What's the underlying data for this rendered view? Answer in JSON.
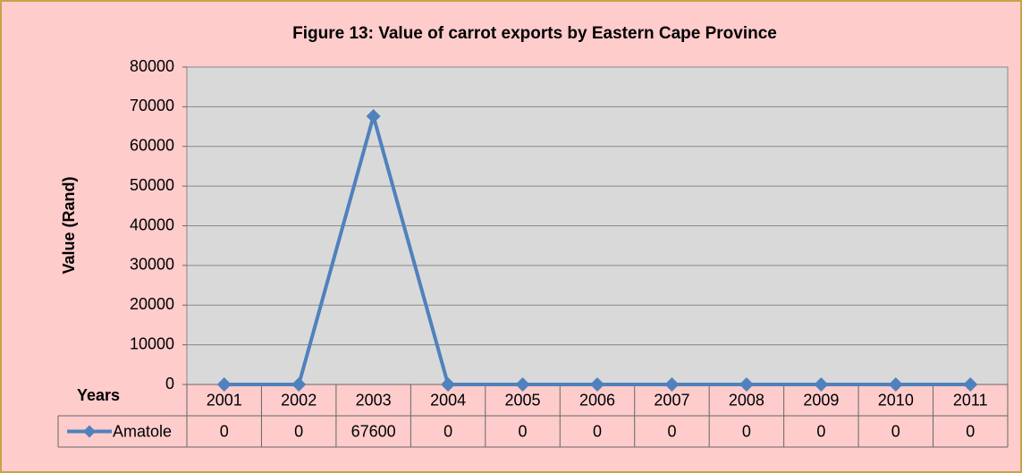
{
  "chart_data": {
    "type": "line",
    "title": "Figure 13: Value of carrot exports by Eastern Cape Province",
    "ylabel": "Value (Rand)",
    "xlabel": "Years",
    "categories": [
      "2001",
      "2002",
      "2003",
      "2004",
      "2005",
      "2006",
      "2007",
      "2008",
      "2009",
      "2010",
      "2011"
    ],
    "series": [
      {
        "name": "Amatole",
        "color": "#4f81bd",
        "values": [
          0,
          0,
          67600,
          0,
          0,
          0,
          0,
          0,
          0,
          0,
          0
        ]
      }
    ],
    "ylim": [
      0,
      80000
    ],
    "yticks": [
      0,
      10000,
      20000,
      30000,
      40000,
      50000,
      60000,
      70000,
      80000
    ],
    "grid": true,
    "data_table": true
  }
}
